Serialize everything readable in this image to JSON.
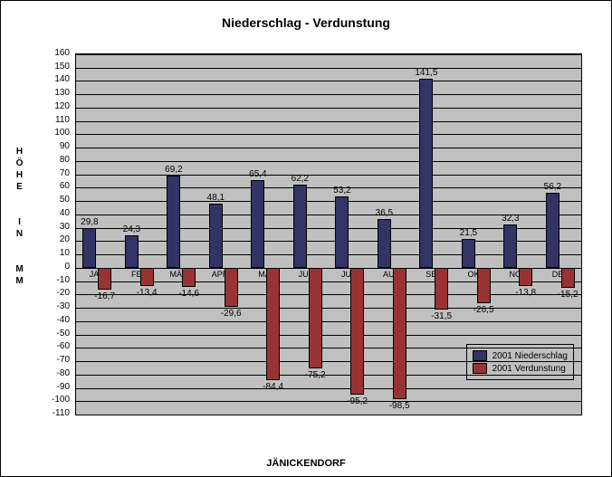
{
  "chart": {
    "type": "bar-grouped",
    "title": "Niederschlag  -  Verdunstung",
    "ylabel": "HÖHE IN MM",
    "xlabel": "JÄNICKENDORF",
    "categories": [
      "JAN",
      "FEB",
      "MÄRZ",
      "APRIL",
      "MAI",
      "JUNI",
      "JULI",
      "AUG",
      "SEP",
      "OKT",
      "NOV",
      "DEZ"
    ],
    "seriesA": {
      "name": "2001 Niederschlag",
      "color": "#333366",
      "values": [
        29.8,
        24.3,
        69.2,
        48.1,
        65.4,
        62.2,
        53.2,
        36.5,
        141.5,
        21.5,
        32.3,
        56.2
      ]
    },
    "seriesB": {
      "name": "2001 Verdunstung",
      "color": "#993333",
      "values": [
        -16.7,
        -13.4,
        -14.6,
        -29.6,
        -84.4,
        -75.2,
        -95.2,
        -98.5,
        -31.5,
        -26.5,
        -13.8,
        -15.2
      ]
    },
    "ylim": [
      -110,
      160
    ],
    "ytick_step": 10,
    "background_color": "#c0c0c0",
    "grid_color": "#000000",
    "label_fontsize": 10,
    "title_fontsize": 14,
    "legend_position": "bottom-right"
  }
}
